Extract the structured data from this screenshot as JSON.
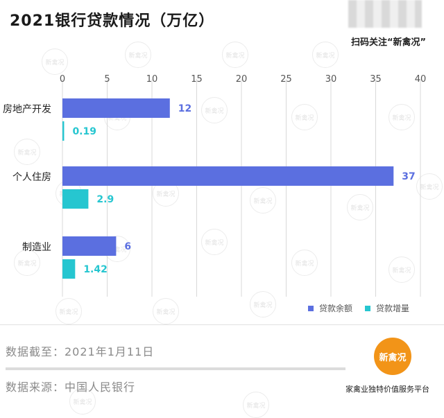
{
  "header": {
    "title": "2021银行贷款情况（万亿）",
    "qr_caption": "扫码关注“新禽况”"
  },
  "watermark_text": "新禽况",
  "chart_data": {
    "type": "bar",
    "orientation": "horizontal",
    "categories": [
      "房地产开发",
      "个人住房",
      "制造业"
    ],
    "series": [
      {
        "name": "贷款余额",
        "values": [
          12,
          37,
          6
        ],
        "labels": [
          "12",
          "37",
          "6"
        ],
        "color": "#5b6fe0"
      },
      {
        "name": "贷款增量",
        "values": [
          0.19,
          2.9,
          1.42
        ],
        "labels": [
          "0.19",
          "2.9",
          "1.42"
        ],
        "color": "#26c6d0"
      }
    ],
    "xlim": [
      0,
      40
    ],
    "xticks": [
      "0",
      "5",
      "10",
      "15",
      "20",
      "25",
      "30",
      "35",
      "40"
    ],
    "grid": true,
    "axis_position": "top",
    "legend": "bottom-right"
  },
  "footer": {
    "date_line": "数据截至：2021年1月11日",
    "source_line": "数据来源：中国人民银行",
    "logo_text": "新禽况",
    "logo_caption": "家禽业独特价值服务平台"
  }
}
